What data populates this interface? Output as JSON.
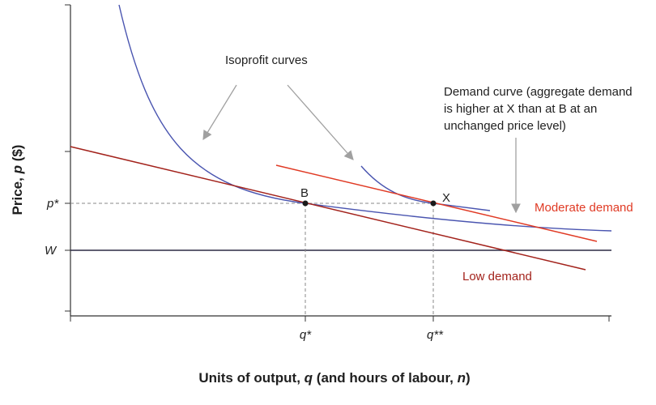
{
  "colors": {
    "axis": "#333333",
    "isoprofit": "#4a55b0",
    "low_demand": "#a3231c",
    "moderate_demand": "#e03a24",
    "wage_line": "#2b2a44",
    "arrow": "#a0a0a0",
    "dashed": "#8a8a8a",
    "point": "#1a1a1a"
  },
  "axes": {
    "y_title_prefix": "Price, ",
    "y_title_var": "p",
    "y_title_suffix": " ($)",
    "x_title_prefix": "Units of output, ",
    "x_title_var1": "q",
    "x_title_middle": " (and hours of labour, ",
    "x_title_var2": "n",
    "x_title_suffix": ")",
    "y_ticks": {
      "p_star": "p*",
      "w": "W"
    },
    "x_ticks": {
      "q_star": "q*",
      "q_double_star": "q**"
    }
  },
  "points": {
    "b": "B",
    "x": "X"
  },
  "annotations": {
    "isoprofit": "Isoprofit curves",
    "demand_line1": "Demand curve (aggregate demand",
    "demand_line2": "is higher at X than at B at an",
    "demand_line3": "unchanged price level)",
    "moderate_demand": "Moderate demand",
    "low_demand": "Low demand"
  }
}
